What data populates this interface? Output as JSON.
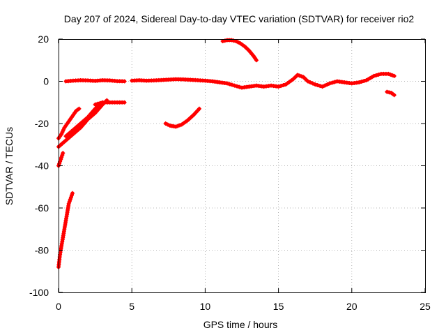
{
  "chart_data": {
    "type": "line",
    "title": "Day 207 of 2024, Sidereal Day-to-day VTEC variation (SDTVAR) for receiver rio2",
    "xlabel": "GPS time / hours",
    "ylabel": "SDTVAR / TECUs",
    "xlim": [
      0,
      25
    ],
    "ylim": [
      -100,
      20
    ],
    "x_ticks": [
      "0",
      "5",
      "10",
      "15",
      "20",
      "25"
    ],
    "y_ticks": [
      "20",
      "0",
      "-20",
      "-40",
      "-60",
      "-80",
      "-100"
    ],
    "grid": true,
    "color": "#ff0000",
    "series": [
      {
        "x": [
          0.0,
          0.1,
          0.2,
          0.3,
          0.4,
          0.5,
          0.6,
          0.7,
          0.85,
          0.95
        ],
        "y": [
          -88,
          -82,
          -78,
          -74,
          -70,
          -66,
          -62,
          -58,
          -55,
          -53
        ]
      },
      {
        "x": [
          0.0,
          0.1,
          0.2,
          0.3
        ],
        "y": [
          -40,
          -38,
          -36,
          -34
        ]
      },
      {
        "x": [
          0.0,
          0.2,
          0.4,
          0.6,
          0.8,
          1.0,
          1.2,
          1.4
        ],
        "y": [
          -27,
          -25,
          -22,
          -20,
          -18,
          -16,
          -14,
          -13
        ]
      },
      {
        "x": [
          0.0,
          0.5,
          1.0,
          1.5,
          2.0,
          2.5,
          3.0,
          3.3
        ],
        "y": [
          -31,
          -28,
          -25,
          -22,
          -18,
          -15,
          -11,
          -9
        ]
      },
      {
        "x": [
          0.5,
          1.0,
          1.5,
          2.0,
          2.5,
          3.0
        ],
        "y": [
          -26,
          -23,
          -20,
          -17,
          -13,
          -10
        ]
      },
      {
        "x": [
          2.5,
          3.0,
          3.5,
          4.0,
          4.5
        ],
        "y": [
          -11,
          -10,
          -10,
          -10,
          -10
        ]
      },
      {
        "x": [
          0.5,
          1.0,
          1.5,
          2.0,
          2.5,
          3.0,
          3.5,
          4.0,
          4.5
        ],
        "y": [
          0.0,
          0.3,
          0.5,
          0.4,
          0.2,
          0.5,
          0.4,
          0.1,
          0.0
        ]
      },
      {
        "x": [
          5.0,
          5.5,
          6.0,
          6.5,
          7.0,
          7.5,
          8.0,
          8.5,
          9.0,
          9.5,
          10.0,
          10.5,
          11.0,
          11.5,
          12.0,
          12.5,
          13.0,
          13.5,
          14.0,
          14.5,
          15.0,
          15.5,
          16.0,
          16.3,
          16.7,
          17.0,
          17.5,
          18.0,
          18.5,
          19.0,
          19.5,
          20.0,
          20.5,
          21.0,
          21.5,
          22.0,
          22.5,
          22.9
        ],
        "y": [
          0.3,
          0.5,
          0.3,
          0.4,
          0.6,
          0.8,
          1.0,
          0.9,
          0.7,
          0.5,
          0.3,
          0.0,
          -0.5,
          -1.0,
          -2.0,
          -3.0,
          -2.5,
          -2.0,
          -2.5,
          -2.0,
          -2.5,
          -1.5,
          1.0,
          3.0,
          2.0,
          0.0,
          -1.5,
          -2.5,
          -1.0,
          0.0,
          -0.5,
          -1.0,
          -0.5,
          0.5,
          2.5,
          3.5,
          3.5,
          2.5
        ]
      },
      {
        "x": [
          7.3,
          7.6,
          8.0,
          8.4,
          8.8,
          9.2,
          9.6
        ],
        "y": [
          -20,
          -21,
          -21.5,
          -20.5,
          -18.5,
          -16,
          -13
        ]
      },
      {
        "x": [
          11.2,
          11.5,
          11.8,
          12.1,
          12.4,
          12.7,
          13.0,
          13.3,
          13.5
        ],
        "y": [
          19,
          19.5,
          19.5,
          19,
          18,
          16.5,
          14.5,
          12,
          10
        ]
      },
      {
        "x": [
          22.4,
          22.7,
          22.9
        ],
        "y": [
          -5,
          -5.5,
          -6.5
        ]
      }
    ]
  }
}
